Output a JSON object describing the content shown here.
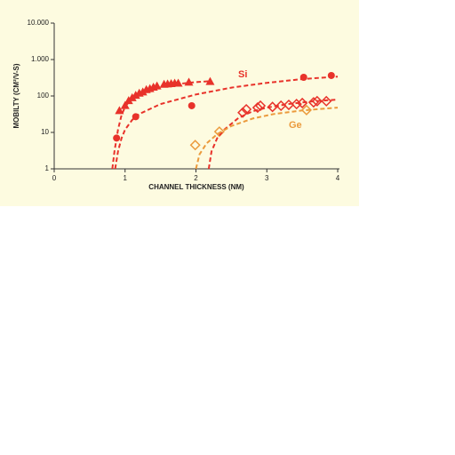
{
  "chart_data": {
    "type": "scatter",
    "xlabel": "CHANNEL THICKNESS (NM)",
    "ylabel": "MOBILTY  (CM²/V-S)",
    "xlim": [
      0,
      4
    ],
    "xticks": [
      0,
      1,
      2,
      3,
      4
    ],
    "ylim": [
      1,
      10000
    ],
    "ylog": true,
    "yticks": [
      1,
      10,
      100,
      {
        "value": 1000,
        "label": "1.000"
      },
      {
        "value": 10000,
        "label": "10.000"
      }
    ],
    "annotations": [
      {
        "text": "Si",
        "color": "#e8322a"
      },
      {
        "text": "Ge",
        "color": "#eb9a3c"
      }
    ],
    "series": [
      {
        "marker": "triangle",
        "color": "#e8322a",
        "x": [
          0.92,
          1.0,
          1.05,
          1.1,
          1.15,
          1.2,
          1.25,
          1.3,
          1.35,
          1.4,
          1.45,
          1.55,
          1.6,
          1.65,
          1.7,
          1.75,
          1.9,
          2.2
        ],
        "values": [
          40,
          55,
          75,
          90,
          105,
          120,
          130,
          150,
          160,
          175,
          190,
          210,
          215,
          220,
          225,
          225,
          240,
          250
        ]
      },
      {
        "marker": "circle",
        "color": "#e8322a",
        "x": [
          0.88,
          1.15,
          1.94,
          3.52,
          3.91
        ],
        "values": [
          7,
          27,
          54,
          325,
          365
        ]
      },
      {
        "marker": "diamond",
        "color": "#e8322a",
        "x": [
          2.66,
          2.71,
          2.87,
          2.91,
          3.08,
          3.2,
          3.31,
          3.42,
          3.5,
          3.66,
          3.71,
          3.84
        ],
        "values": [
          35,
          43,
          48,
          54,
          50,
          54,
          57,
          60,
          64,
          67,
          72,
          72
        ]
      },
      {
        "marker": "diamond",
        "color": "#eb9a3c",
        "x": [
          1.99,
          2.33,
          3.56
        ],
        "values": [
          4.5,
          10.5,
          41
        ]
      },
      {
        "marker": "line",
        "color": "#e8322a",
        "x": [
          0.82,
          0.85,
          0.9,
          0.95,
          1.0,
          1.1,
          1.2,
          1.4,
          1.7,
          2.0,
          2.2
        ],
        "values": [
          1,
          3,
          12,
          30,
          50,
          90,
          120,
          170,
          210,
          240,
          255
        ]
      },
      {
        "marker": "line",
        "color": "#e8322a",
        "x": [
          0.86,
          0.9,
          0.95,
          1.0,
          1.1,
          1.2,
          1.5,
          2.0,
          2.5,
          3.0,
          3.5,
          4.0
        ],
        "values": [
          1,
          3,
          7,
          12,
          22,
          32,
          60,
          110,
          170,
          230,
          290,
          340
        ]
      },
      {
        "marker": "line",
        "color": "#e8322a",
        "x": [
          2.18,
          2.22,
          2.3,
          2.4,
          2.6,
          2.8,
          3.0,
          3.3,
          3.6,
          4.0
        ],
        "values": [
          1,
          3,
          7,
          12,
          25,
          38,
          48,
          60,
          70,
          80
        ]
      },
      {
        "marker": "line",
        "color": "#eb9a3c",
        "x": [
          2.0,
          2.05,
          2.15,
          2.3,
          2.5,
          2.8,
          3.1,
          3.5,
          4.0
        ],
        "values": [
          1,
          2.5,
          5,
          9,
          15,
          24,
          32,
          40,
          48
        ]
      }
    ]
  }
}
